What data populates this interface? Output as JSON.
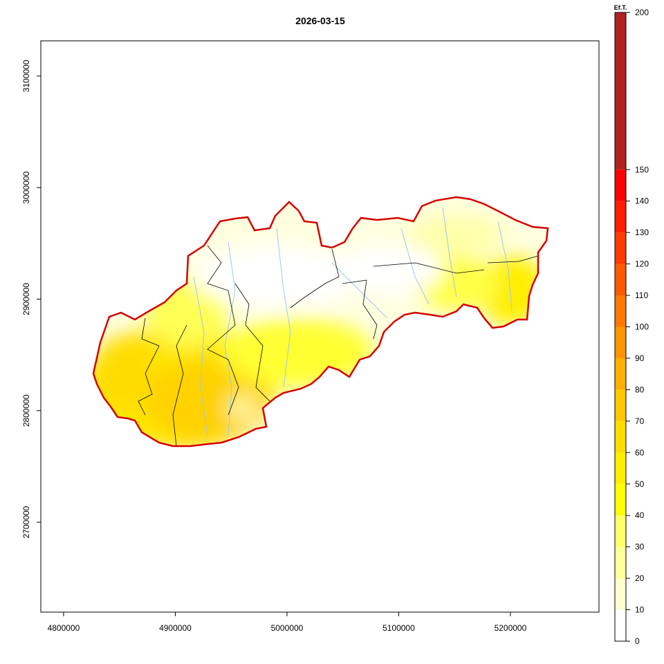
{
  "title": "2026-03-15",
  "x_axis": {
    "lim": [
      4779600,
      5279300
    ],
    "ticks": [
      4800000,
      4900000,
      5000000,
      5100000,
      5200000
    ]
  },
  "y_axis": {
    "lim": [
      2619400,
      3131600
    ],
    "ticks": [
      2700000,
      2800000,
      2900000,
      3000000,
      3100000
    ]
  },
  "legend": {
    "title": "Ef.T.",
    "breaks": [
      0,
      10,
      20,
      30,
      40,
      50,
      60,
      70,
      80,
      90,
      100,
      110,
      120,
      130,
      140,
      150,
      200
    ],
    "colors": [
      "#ffffff",
      "#ffffcc",
      "#ffff99",
      "#ffff66",
      "#ffff00",
      "#ffee00",
      "#ffdd00",
      "#ffc800",
      "#ffb000",
      "#ff9500",
      "#ff7800",
      "#ff5a00",
      "#ff3c00",
      "#ff1e00",
      "#ff0000",
      "#b22222"
    ]
  }
}
